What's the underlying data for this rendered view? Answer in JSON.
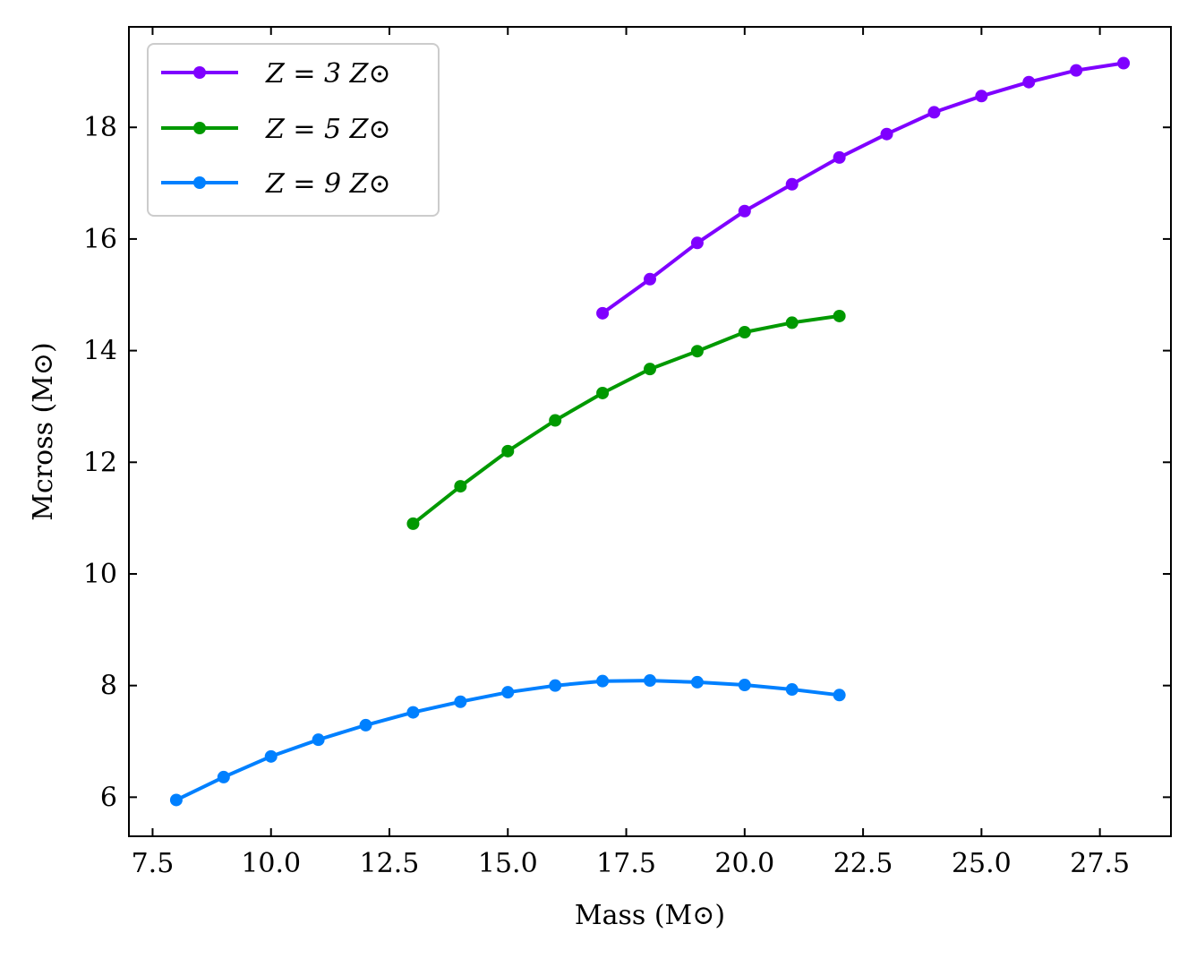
{
  "chart_data": {
    "type": "line",
    "xlabel": "Mass (M⊙)",
    "ylabel": "Mcross (M⊙)",
    "xlim": [
      7,
      29
    ],
    "ylim": [
      5.3,
      19.8
    ],
    "xticks": [
      7.5,
      10.0,
      12.5,
      15.0,
      17.5,
      20.0,
      22.5,
      25.0,
      27.5
    ],
    "xtick_labels": [
      "7.5",
      "10.0",
      "12.5",
      "15.0",
      "17.5",
      "20.0",
      "22.5",
      "25.0",
      "27.5"
    ],
    "yticks": [
      6,
      8,
      10,
      12,
      14,
      16,
      18
    ],
    "ytick_labels": [
      "6",
      "8",
      "10",
      "12",
      "14",
      "16",
      "18"
    ],
    "grid": false,
    "legend_position": "top-left",
    "series": [
      {
        "name": "Z = 3 Z⊙",
        "color": "#7f00ff",
        "x": [
          17,
          18,
          19,
          20,
          21,
          22,
          23,
          24,
          25,
          26,
          27,
          28
        ],
        "y": [
          14.67,
          15.28,
          15.93,
          16.5,
          16.98,
          17.46,
          17.88,
          18.27,
          18.56,
          18.81,
          19.02,
          19.15
        ]
      },
      {
        "name": "Z = 5 Z⊙",
        "color": "#009900",
        "x": [
          13,
          14,
          15,
          16,
          17,
          18,
          19,
          20,
          21,
          22
        ],
        "y": [
          10.9,
          11.57,
          12.2,
          12.75,
          13.24,
          13.67,
          13.99,
          14.33,
          14.5,
          14.62
        ]
      },
      {
        "name": "Z = 9 Z⊙",
        "color": "#0080ff",
        "x": [
          8,
          9,
          10,
          11,
          12,
          13,
          14,
          15,
          16,
          17,
          18,
          19,
          20,
          21,
          22
        ],
        "y": [
          5.95,
          6.36,
          6.73,
          7.03,
          7.29,
          7.52,
          7.71,
          7.88,
          8.0,
          8.08,
          8.09,
          8.06,
          8.01,
          7.93,
          7.83
        ]
      }
    ]
  }
}
